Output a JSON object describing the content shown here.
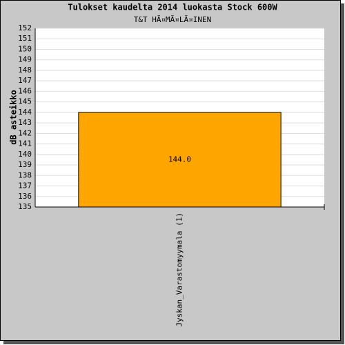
{
  "chart_data": {
    "type": "bar",
    "title": "Tulokset kaudelta 2014 luokasta Stock 600W",
    "subtitle": "T&T HÃ¤MÃ¤LÃ¤INEN",
    "y_label": "dB asteikko",
    "categories": [
      "Jyskan_Varastomyymala (1)"
    ],
    "values": [
      144
    ],
    "value_labels": [
      "144.0"
    ],
    "color": "#ffa500",
    "ylim": [
      135,
      152
    ],
    "yticks": [
      135,
      136,
      137,
      138,
      139,
      140,
      141,
      142,
      143,
      144,
      145,
      146,
      147,
      148,
      149,
      150,
      151,
      152
    ],
    "grid": true
  }
}
